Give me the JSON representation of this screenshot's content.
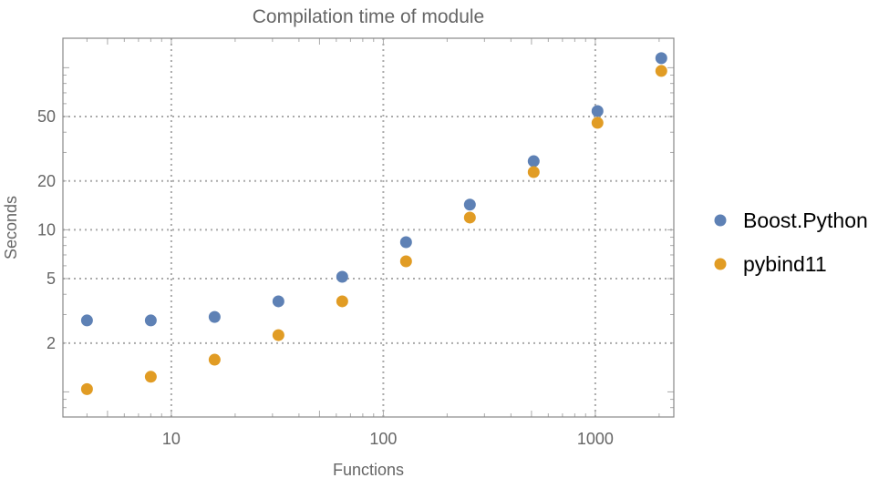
{
  "chart_data": {
    "type": "scatter",
    "title": "Compilation time of module",
    "xlabel": "Functions",
    "ylabel": "Seconds",
    "x_scale": "log",
    "y_scale": "log",
    "xlim": [
      3.08,
      2346
    ],
    "ylim": [
      0.7,
      152
    ],
    "grid": true,
    "legend_position": "right",
    "x_ticks": [
      {
        "value": 10,
        "label": "10"
      },
      {
        "value": 100,
        "label": "100"
      },
      {
        "value": 1000,
        "label": "1000"
      }
    ],
    "y_ticks": [
      {
        "value": 2,
        "label": "2"
      },
      {
        "value": 5,
        "label": "5"
      },
      {
        "value": 10,
        "label": "10"
      },
      {
        "value": 20,
        "label": "20"
      },
      {
        "value": 50,
        "label": "50"
      }
    ],
    "x": [
      4,
      8,
      16,
      32,
      64,
      128,
      256,
      512,
      1024,
      2048
    ],
    "series": [
      {
        "name": "Boost.Python",
        "color": "#5E81B5",
        "values": [
          2.76,
          2.76,
          2.9,
          3.62,
          5.13,
          8.39,
          14.3,
          26.5,
          54.0,
          114.5
        ]
      },
      {
        "name": "pybind11",
        "color": "#E19C24",
        "values": [
          1.04,
          1.24,
          1.58,
          2.24,
          3.62,
          6.39,
          11.9,
          22.7,
          45.7,
          95.5
        ]
      }
    ]
  }
}
